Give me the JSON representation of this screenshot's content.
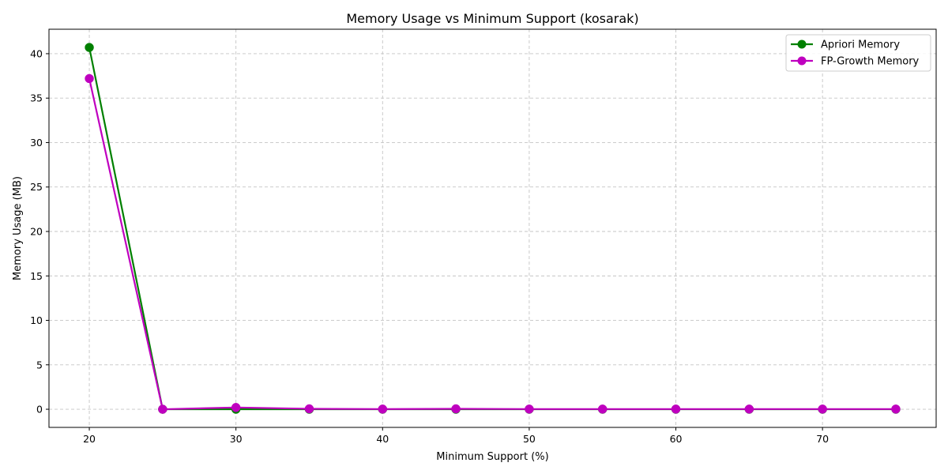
{
  "chart_data": {
    "type": "line",
    "title": "Memory Usage vs Minimum Support (kosarak)",
    "xlabel": "Minimum Support (%)",
    "ylabel": "Memory Usage (MB)",
    "x": [
      20,
      25,
      30,
      35,
      40,
      45,
      50,
      55,
      60,
      65,
      70,
      75
    ],
    "xlim": [
      17.25,
      77.75
    ],
    "ylim": [
      -2.04,
      42.75
    ],
    "xticks": [
      20,
      30,
      40,
      50,
      60,
      70
    ],
    "yticks": [
      0,
      5,
      10,
      15,
      20,
      25,
      30,
      35,
      40
    ],
    "grid": true,
    "legend_position": "top-right",
    "series": [
      {
        "name": "Apriori Memory",
        "color": "#008000",
        "values": [
          40.7,
          0.0,
          0.0,
          0.0,
          0.0,
          0.0,
          0.0,
          0.0,
          0.0,
          0.0,
          0.0,
          0.0
        ]
      },
      {
        "name": "FP-Growth Memory",
        "color": "#bf00bf",
        "values": [
          37.2,
          0.0,
          0.2,
          0.05,
          0.02,
          0.05,
          0.02,
          0.02,
          0.02,
          0.02,
          0.02,
          0.02
        ]
      }
    ]
  }
}
